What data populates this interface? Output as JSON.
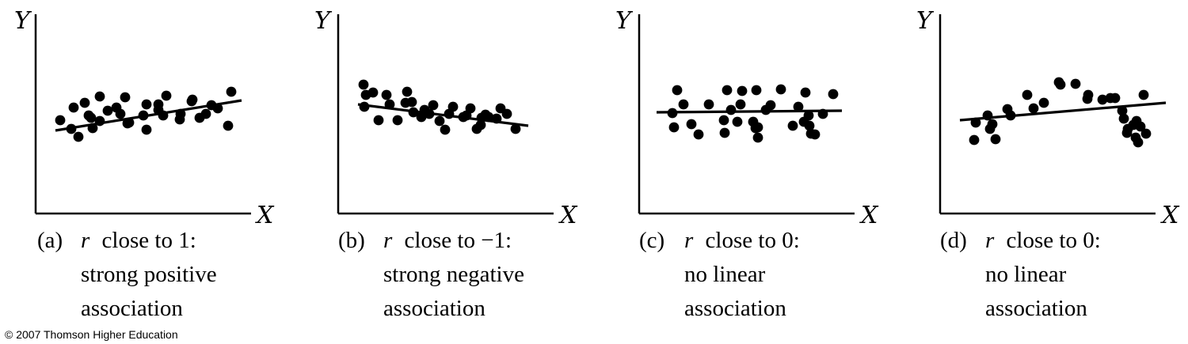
{
  "credit": "© 2007 Thomson Higher Education",
  "chart_data": [
    {
      "type": "scatter",
      "id": "a",
      "xlabel": "X",
      "ylabel": "Y",
      "caption": {
        "prefix": "(a)",
        "r": "r",
        "rel": "close to 1:",
        "line2": "strong positive",
        "line3": "association"
      },
      "points": [
        [
          31,
          118
        ],
        [
          45,
          107
        ],
        [
          48,
          134
        ],
        [
          54,
          97
        ],
        [
          62,
          140
        ],
        [
          67,
          124
        ],
        [
          70,
          121
        ],
        [
          72,
          108
        ],
        [
          81,
          117
        ],
        [
          81,
          148
        ],
        [
          91,
          130
        ],
        [
          102,
          134
        ],
        [
          107,
          126
        ],
        [
          113,
          147
        ],
        [
          116,
          114
        ],
        [
          118,
          115
        ],
        [
          136,
          124
        ],
        [
          140,
          138
        ],
        [
          140,
          106
        ],
        [
          155,
          138
        ],
        [
          155,
          131
        ],
        [
          161,
          124
        ],
        [
          165,
          149
        ],
        [
          182,
          119
        ],
        [
          183,
          126
        ],
        [
          197,
          142
        ],
        [
          198,
          144
        ],
        [
          207,
          121
        ],
        [
          215,
          126
        ],
        [
          222,
          137
        ],
        [
          230,
          133
        ],
        [
          243,
          111
        ],
        [
          247,
          154
        ]
      ],
      "fit": {
        "x1": 25,
        "y1": 105,
        "x2": 260,
        "y2": 143
      }
    },
    {
      "type": "scatter",
      "id": "b",
      "xlabel": "X",
      "ylabel": "Y",
      "caption": {
        "prefix": "(b)",
        "r": "r",
        "rel": "close to −1:",
        "line2": "strong negative",
        "line3": "association"
      },
      "points": [
        [
          32,
          163
        ],
        [
          33,
          135
        ],
        [
          35,
          150
        ],
        [
          44,
          153
        ],
        [
          51,
          118
        ],
        [
          61,
          150
        ],
        [
          65,
          138
        ],
        [
          75,
          118
        ],
        [
          85,
          140
        ],
        [
          87,
          154
        ],
        [
          93,
          141
        ],
        [
          95,
          128
        ],
        [
          105,
          122
        ],
        [
          109,
          131
        ],
        [
          115,
          126
        ],
        [
          120,
          137
        ],
        [
          128,
          117
        ],
        [
          135,
          106
        ],
        [
          140,
          126
        ],
        [
          145,
          135
        ],
        [
          158,
          122
        ],
        [
          162,
          124
        ],
        [
          167,
          133
        ],
        [
          175,
          107
        ],
        [
          180,
          112
        ],
        [
          181,
          121
        ],
        [
          186,
          125
        ],
        [
          190,
          122
        ],
        [
          200,
          120
        ],
        [
          205,
          133
        ],
        [
          213,
          126
        ],
        [
          224,
          107
        ]
      ],
      "fit": {
        "x1": 25,
        "y1": 138,
        "x2": 240,
        "y2": 111
      }
    },
    {
      "type": "scatter",
      "id": "c",
      "xlabel": "X",
      "ylabel": "Y",
      "caption": {
        "prefix": "(c)",
        "r": "r",
        "rel": "close to 0:",
        "line2": "no linear",
        "line3": "association"
      },
      "points": [
        [
          42,
          127
        ],
        [
          44,
          109
        ],
        [
          48,
          156
        ],
        [
          56,
          138
        ],
        [
          66,
          113
        ],
        [
          75,
          100
        ],
        [
          88,
          138
        ],
        [
          107,
          118
        ],
        [
          108,
          102
        ],
        [
          111,
          156
        ],
        [
          116,
          131
        ],
        [
          124,
          116
        ],
        [
          128,
          138
        ],
        [
          130,
          155
        ],
        [
          144,
          116
        ],
        [
          147,
          108
        ],
        [
          148,
          156
        ],
        [
          150,
          109
        ],
        [
          150,
          96
        ],
        [
          160,
          131
        ],
        [
          166,
          137
        ],
        [
          179,
          157
        ],
        [
          194,
          111
        ],
        [
          201,
          135
        ],
        [
          208,
          116
        ],
        [
          210,
          153
        ],
        [
          214,
          124
        ],
        [
          215,
          111
        ],
        [
          217,
          101
        ],
        [
          222,
          100
        ],
        [
          232,
          126
        ],
        [
          245,
          151
        ]
      ],
      "fit": {
        "x1": 22,
        "y1": 128,
        "x2": 256,
        "y2": 130
      }
    },
    {
      "type": "scatter",
      "id": "d",
      "xlabel": "X",
      "ylabel": "Y",
      "caption": {
        "prefix": "(d)",
        "r": "r",
        "rel": "close to 0:",
        "line2": "no linear",
        "line3": "association"
      },
      "points": [
        [
          43,
          93
        ],
        [
          45,
          115
        ],
        [
          60,
          124
        ],
        [
          63,
          107
        ],
        [
          66,
          113
        ],
        [
          70,
          94
        ],
        [
          85,
          132
        ],
        [
          89,
          124
        ],
        [
          110,
          150
        ],
        [
          118,
          133
        ],
        [
          131,
          140
        ],
        [
          150,
          166
        ],
        [
          152,
          163
        ],
        [
          171,
          164
        ],
        [
          186,
          145
        ],
        [
          187,
          150
        ],
        [
          205,
          144
        ],
        [
          215,
          146
        ],
        [
          221,
          146
        ],
        [
          230,
          130
        ],
        [
          232,
          120
        ],
        [
          236,
          102
        ],
        [
          237,
          107
        ],
        [
          244,
          112
        ],
        [
          247,
          96
        ],
        [
          248,
          117
        ],
        [
          250,
          90
        ],
        [
          253,
          110
        ],
        [
          257,
          150
        ],
        [
          260,
          101
        ]
      ],
      "fit": {
        "x1": 25,
        "y1": 118,
        "x2": 285,
        "y2": 140
      }
    }
  ]
}
